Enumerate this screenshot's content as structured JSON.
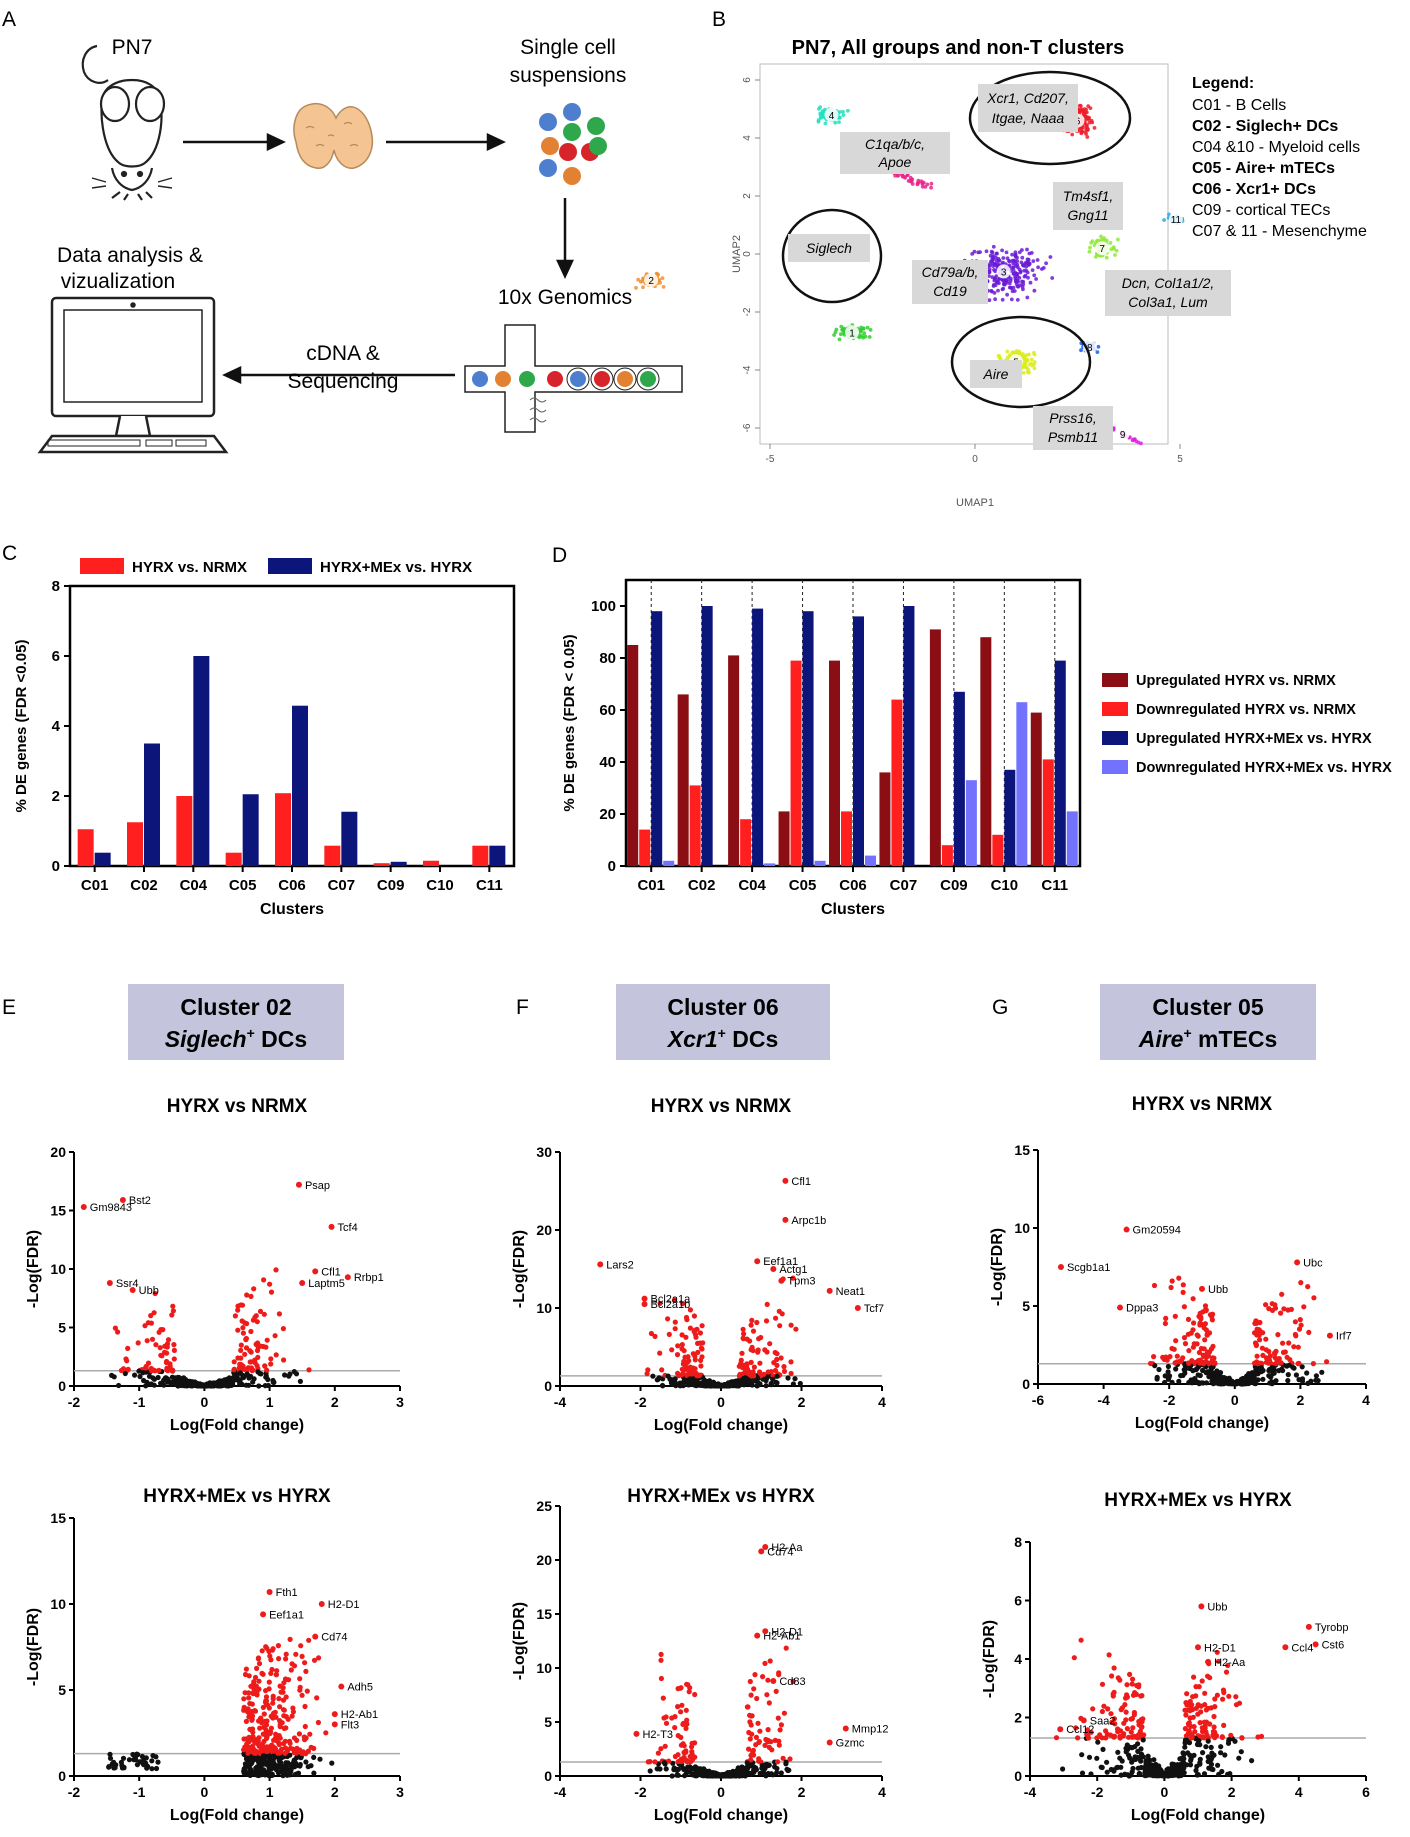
{
  "panels": {
    "A": {
      "letter": "A",
      "pn7": "PN7",
      "single_cell_1": "Single cell",
      "single_cell_2": "suspensions",
      "genomics": "10x Genomics",
      "cdna_1": "cDNA &",
      "cdna_2": "Sequencing",
      "analysis_1": "Data analysis &",
      "analysis_2": "vizualization",
      "cell_colors": [
        "#4e7fce",
        "#2ea84b",
        "#e38132",
        "#d7232a"
      ]
    },
    "B": {
      "letter": "B",
      "title": "PN7, All groups and non-T clusters",
      "xlabel": "UMAP1",
      "ylabel": "UMAP2",
      "xticks": [
        "-5",
        "0",
        "5"
      ],
      "yticks": [
        "6",
        "4",
        "2",
        "0",
        "-2",
        "-4",
        "-6"
      ],
      "legend_title": "Legend:",
      "legend": [
        {
          "text": "C01 - B Cells",
          "bold": false
        },
        {
          "text": "C02 - Siglech+ DCs",
          "bold": true
        },
        {
          "text": "C04 &10 - Myeloid cells",
          "bold": false
        },
        {
          "text": "C05 - Aire+ mTECs",
          "bold": true
        },
        {
          "text": "C06 - Xcr1+ DCs",
          "bold": true
        },
        {
          "text": "C09 - cortical TECs",
          "bold": false
        },
        {
          "text": "C07 & 11 - Mesenchyme",
          "bold": false
        }
      ],
      "gene_boxes": [
        {
          "lines": [
            "Xcr1, Cd207,",
            "Itgae, Naaa"
          ]
        },
        {
          "lines": [
            "C1qa/b/c,",
            "Apoe"
          ]
        },
        {
          "lines": [
            "Tm4sf1,",
            "Gng11"
          ]
        },
        {
          "lines": [
            "Siglech"
          ]
        },
        {
          "lines": [
            "Cd79a/b,",
            "Cd19"
          ]
        },
        {
          "lines": [
            "Dcn, Col1a1/2,",
            "Col3a1, Lum"
          ]
        },
        {
          "lines": [
            "Aire"
          ]
        },
        {
          "lines": [
            "Prss16,",
            "Psmb11"
          ]
        }
      ],
      "clusters": [
        {
          "id": "4",
          "color": "#22e0c0",
          "x": -3.5,
          "y": 4.8
        },
        {
          "id": "6",
          "color": "#ee1c2c",
          "x": 2.5,
          "y": 4.6
        },
        {
          "id": "10",
          "color": "#e8248c",
          "x": -2.3,
          "y": 3.0
        },
        {
          "id": "11",
          "color": "#29a8e8",
          "x": 4.9,
          "y": 1.2
        },
        {
          "id": "3",
          "color": "#6a1bd6",
          "x": 0.7,
          "y": -0.6
        },
        {
          "id": "7",
          "color": "#8fe83a",
          "x": 3.1,
          "y": 0.2
        },
        {
          "id": "2",
          "color": "#f09030",
          "x": -7.9,
          "y": -0.9
        },
        {
          "id": "1",
          "color": "#33cc33",
          "x": -3.0,
          "y": -2.7
        },
        {
          "id": "8",
          "color": "#1a5de8",
          "x": 2.8,
          "y": -3.2
        },
        {
          "id": "5",
          "color": "#dcec1c",
          "x": 1.0,
          "y": -3.7
        },
        {
          "id": "9",
          "color": "#e020e0",
          "x": 3.6,
          "y": -6.2
        }
      ]
    },
    "C": {
      "letter": "C",
      "legend": [
        "HYRX vs. NRMX",
        "HYRX+MEx vs. HYRX"
      ],
      "colors": [
        "#ff1f1f",
        "#0c157a"
      ]
    },
    "D": {
      "letter": "D",
      "legend": [
        "Upregulated HYRX vs. NRMX",
        "Downregulated HYRX vs. NRMX",
        "Upregulated HYRX+MEx vs. HYRX",
        "Downregulated HYRX+MEx vs. HYRX"
      ],
      "colors": [
        "#8a0e14",
        "#ff1f1f",
        "#0c157a",
        "#7272ff"
      ]
    },
    "E": {
      "letter": "E",
      "title_1": "Cluster 02",
      "title_2_italic": "Siglech",
      "title_2_sup": "+",
      "title_2_rest": " DCs"
    },
    "F": {
      "letter": "F",
      "title_1": "Cluster 06",
      "title_2_italic": "Xcr1",
      "title_2_sup": "+",
      "title_2_rest": " DCs"
    },
    "G": {
      "letter": "G",
      "title_1": "Cluster 05",
      "title_2_italic": "Aire",
      "title_2_sup": "+",
      "title_2_rest": " mTECs"
    }
  },
  "chart_data": [
    {
      "id": "C",
      "type": "bar",
      "title": "",
      "xlabel": "Clusters",
      "ylabel": "% DE genes (FDR <0.05)",
      "ylim": [
        0,
        8
      ],
      "yticks": [
        "0",
        "2",
        "4",
        "6",
        "8"
      ],
      "categories": [
        "C01",
        "C02",
        "C04",
        "C05",
        "C06",
        "C07",
        "C09",
        "C10",
        "C11"
      ],
      "series": [
        {
          "name": "HYRX vs. NRMX",
          "color": "#ff1f1f",
          "values": [
            1.05,
            1.25,
            2.0,
            0.38,
            2.08,
            0.58,
            0.08,
            0.15,
            0.58
          ]
        },
        {
          "name": "HYRX+MEx vs. HYRX",
          "color": "#0c157a",
          "values": [
            0.38,
            3.5,
            6.0,
            2.05,
            4.58,
            1.55,
            0.12,
            0.0,
            0.58
          ]
        }
      ]
    },
    {
      "id": "D",
      "type": "bar",
      "title": "",
      "xlabel": "Clusters",
      "ylabel": "% DE genes (FDR < 0.05)",
      "ylim": [
        0,
        110
      ],
      "yticks": [
        "0",
        "20",
        "40",
        "60",
        "80",
        "100"
      ],
      "categories": [
        "C01",
        "C02",
        "C04",
        "C05",
        "C06",
        "C07",
        "C09",
        "C10",
        "C11"
      ],
      "series": [
        {
          "name": "Upregulated HYRX vs. NRMX",
          "color": "#8a0e14",
          "values": [
            85,
            66,
            81,
            21,
            79,
            36,
            91,
            88,
            59
          ]
        },
        {
          "name": "Downregulated HYRX vs. NRMX",
          "color": "#ff1f1f",
          "values": [
            14,
            31,
            18,
            79,
            21,
            64,
            8,
            12,
            41
          ]
        },
        {
          "name": "Upregulated HYRX+MEx vs. HYRX",
          "color": "#0c157a",
          "values": [
            98,
            100,
            99,
            98,
            96,
            100,
            67,
            37,
            79
          ]
        },
        {
          "name": "Downregulated HYRX+MEx vs. HYRX",
          "color": "#7272ff",
          "values": [
            2,
            0,
            1,
            2,
            4,
            0,
            33,
            63,
            21
          ]
        }
      ]
    },
    {
      "id": "E1",
      "type": "scatter",
      "title": "HYRX vs NRMX",
      "xlabel": "Log(Fold change)",
      "ylabel": "-Log(FDR)",
      "xlim": [
        -2,
        3
      ],
      "ylim": [
        0,
        20
      ],
      "xticks": [
        -2,
        -1,
        0,
        1,
        2,
        3
      ],
      "yticks": [
        0,
        5,
        10,
        15,
        20
      ],
      "threshold": 1.3,
      "seed": 11,
      "left_side": true,
      "xmin_sig": 0.45,
      "labeled_points": [
        {
          "label": "Psap",
          "x": 1.45,
          "y": 17.2
        },
        {
          "label": "Bst2",
          "x": -1.25,
          "y": 15.9
        },
        {
          "label": "Gm9843",
          "x": -1.85,
          "y": 15.3
        },
        {
          "label": "Tcf4",
          "x": 1.95,
          "y": 13.6
        },
        {
          "label": "Cfl1",
          "x": 1.7,
          "y": 9.8
        },
        {
          "label": "Rrbp1",
          "x": 2.2,
          "y": 9.3
        },
        {
          "label": "Laptm5",
          "x": 1.5,
          "y": 8.8
        },
        {
          "label": "Ssr4",
          "x": -1.45,
          "y": 8.8
        },
        {
          "label": "Ubb",
          "x": -1.1,
          "y": 8.2
        }
      ]
    },
    {
      "id": "F1",
      "type": "scatter",
      "title": "HYRX vs NRMX",
      "xlabel": "Log(Fold change)",
      "ylabel": "-Log(FDR)",
      "xlim": [
        -4,
        4
      ],
      "ylim": [
        0,
        30
      ],
      "xticks": [
        -4,
        -2,
        0,
        2,
        4
      ],
      "yticks": [
        0,
        10,
        20,
        30
      ],
      "threshold": 1.3,
      "seed": 23,
      "left_side": true,
      "xmin_sig": 0.45,
      "labeled_points": [
        {
          "label": "Cfl1",
          "x": 1.6,
          "y": 26.3
        },
        {
          "label": "Arpc1b",
          "x": 1.6,
          "y": 21.3
        },
        {
          "label": "Eef1a1",
          "x": 0.9,
          "y": 16.0
        },
        {
          "label": "Lars2",
          "x": -3.0,
          "y": 15.6
        },
        {
          "label": "Actg1",
          "x": 1.3,
          "y": 15.0
        },
        {
          "label": "Tpm3",
          "x": 1.5,
          "y": 13.5
        },
        {
          "label": "Neat1",
          "x": 2.7,
          "y": 12.2
        },
        {
          "label": "Bcl2a1a",
          "x": -1.9,
          "y": 11.2
        },
        {
          "label": "Bcl2a1b",
          "x": -1.9,
          "y": 10.5
        },
        {
          "label": "Tcf7",
          "x": 3.4,
          "y": 10.0
        }
      ]
    },
    {
      "id": "G1",
      "type": "scatter",
      "title": "HYRX vs NRMX",
      "xlabel": "Log(Fold change)",
      "ylabel": "-Log(FDR)",
      "xlim": [
        -6,
        4
      ],
      "ylim": [
        0,
        15
      ],
      "xticks": [
        -6,
        -4,
        -2,
        0,
        2,
        4
      ],
      "yticks": [
        0,
        5,
        10,
        15
      ],
      "threshold": 1.3,
      "seed": 37,
      "left_side": true,
      "xmin_sig": 0.6,
      "labeled_points": [
        {
          "label": "Gm20594",
          "x": -3.3,
          "y": 9.9
        },
        {
          "label": "Ubc",
          "x": 1.9,
          "y": 7.8
        },
        {
          "label": "Scgb1a1",
          "x": -5.3,
          "y": 7.5
        },
        {
          "label": "Ubb",
          "x": -1.0,
          "y": 6.1
        },
        {
          "label": "Dppa3",
          "x": -3.5,
          "y": 4.9
        },
        {
          "label": "Irf7",
          "x": 2.9,
          "y": 3.1
        }
      ]
    },
    {
      "id": "E2",
      "type": "scatter",
      "title": "HYRX+MEx vs HYRX",
      "xlabel": "Log(Fold change)",
      "ylabel": "-Log(FDR)",
      "xlim": [
        -2,
        3
      ],
      "ylim": [
        0,
        15
      ],
      "xticks": [
        -2,
        -1,
        0,
        1,
        2,
        3
      ],
      "yticks": [
        0,
        5,
        10,
        15
      ],
      "threshold": 1.3,
      "seed": 53,
      "left_side": false,
      "xmin_sig": 0.6,
      "labeled_points": [
        {
          "label": "Fth1",
          "x": 1.0,
          "y": 10.7
        },
        {
          "label": "H2-D1",
          "x": 1.8,
          "y": 10.0
        },
        {
          "label": "Eef1a1",
          "x": 0.9,
          "y": 9.4
        },
        {
          "label": "Cd74",
          "x": 1.7,
          "y": 8.1
        },
        {
          "label": "Adh5",
          "x": 2.1,
          "y": 5.2
        },
        {
          "label": "H2-Ab1",
          "x": 2.0,
          "y": 3.6
        },
        {
          "label": "Flt3",
          "x": 2.0,
          "y": 3.0
        }
      ]
    },
    {
      "id": "F2",
      "type": "scatter",
      "title": "HYRX+MEx vs HYRX",
      "xlabel": "Log(Fold change)",
      "ylabel": "-Log(FDR)",
      "xlim": [
        -4,
        4
      ],
      "ylim": [
        0,
        25
      ],
      "xticks": [
        -4,
        -2,
        0,
        2,
        4
      ],
      "yticks": [
        0,
        5,
        10,
        15,
        20,
        25
      ],
      "threshold": 1.3,
      "seed": 71,
      "left_side": true,
      "xmin_sig": 0.65,
      "labeled_points": [
        {
          "label": "H2-Aa",
          "x": 1.1,
          "y": 21.2
        },
        {
          "label": "Cd74",
          "x": 1.0,
          "y": 20.8
        },
        {
          "label": "H2-Ab1",
          "x": 0.9,
          "y": 13.0
        },
        {
          "label": "H2-D1",
          "x": 1.1,
          "y": 13.4
        },
        {
          "label": "Cd83",
          "x": 1.3,
          "y": 8.8
        },
        {
          "label": "H2-T3",
          "x": -2.1,
          "y": 3.9
        },
        {
          "label": "Mmp12",
          "x": 3.1,
          "y": 4.4
        },
        {
          "label": "Gzmc",
          "x": 2.7,
          "y": 3.1
        }
      ]
    },
    {
      "id": "G2",
      "type": "scatter",
      "title": "HYRX+MEx vs HYRX",
      "xlabel": "Log(Fold change)",
      "ylabel": "-Log(FDR)",
      "xlim": [
        -4,
        6
      ],
      "ylim": [
        0,
        8
      ],
      "xticks": [
        -4,
        -2,
        0,
        2,
        4,
        6
      ],
      "yticks": [
        0,
        2,
        4,
        6,
        8
      ],
      "threshold": 1.3,
      "seed": 97,
      "left_side": true,
      "xmin_sig": 0.6,
      "labeled_points": [
        {
          "label": "Ubb",
          "x": 1.1,
          "y": 5.8
        },
        {
          "label": "Tyrobp",
          "x": 4.3,
          "y": 5.1
        },
        {
          "label": "Cst6",
          "x": 4.5,
          "y": 4.5
        },
        {
          "label": "Ccl4",
          "x": 3.6,
          "y": 4.4
        },
        {
          "label": "H2-D1",
          "x": 1.0,
          "y": 4.4
        },
        {
          "label": "H2-Aa",
          "x": 1.3,
          "y": 3.9
        },
        {
          "label": "Saa2",
          "x": -2.4,
          "y": 1.9
        },
        {
          "label": "Ccl12",
          "x": -3.1,
          "y": 1.6
        }
      ]
    }
  ]
}
